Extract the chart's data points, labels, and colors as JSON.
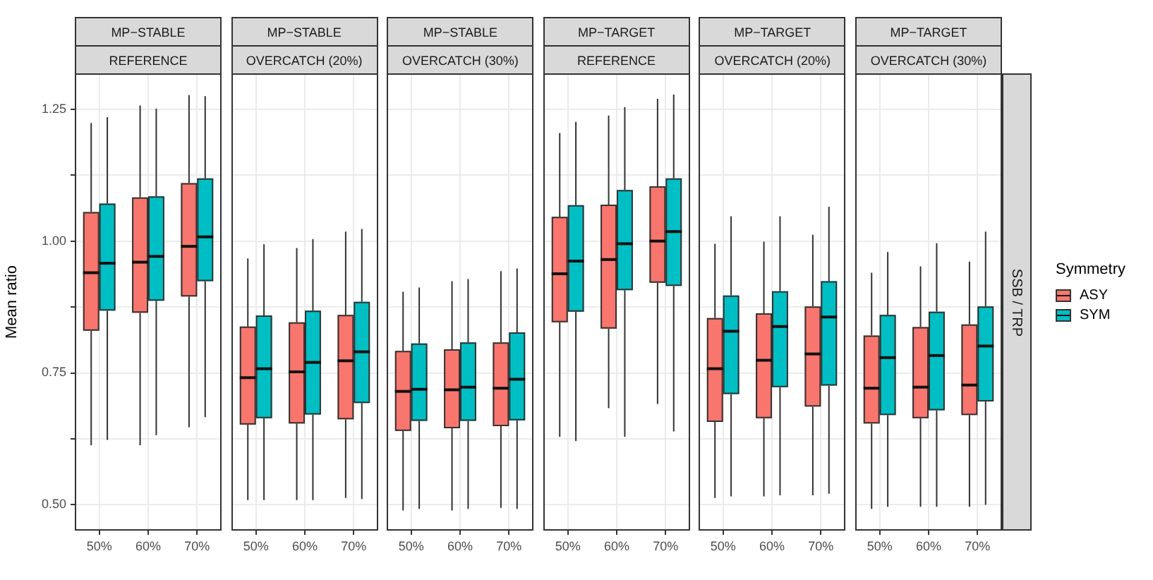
{
  "chart_data": [
    {
      "type": "box",
      "title": "MP−STABLE",
      "subtitle": "REFERENCE",
      "ylabel": "Mean ratio",
      "categories": [
        "50%",
        "60%",
        "70%"
      ],
      "ylim": [
        0.451,
        1.318
      ],
      "yticks": [
        {
          "value": 0.5,
          "label": "0.50"
        },
        {
          "value": 0.625,
          "label": null
        },
        0.75,
        {
          "value": 0.875,
          "label": null
        },
        {
          "value": 1,
          "label": "1.00"
        },
        {
          "value": 1.125,
          "label": null
        },
        1.25
      ],
      "grid": true,
      "series": [
        {
          "color": "#f8766d",
          "boxes": [
            {
              "low": 0.613,
              "q1": 0.83,
              "median": 0.94,
              "q3": 1.055,
              "high": 1.224
            },
            {
              "low": 0.613,
              "q1": 0.864,
              "median": 0.96,
              "q3": 1.083,
              "high": 1.257
            },
            {
              "low": 0.647,
              "q1": 0.895,
              "median": 0.99,
              "q3": 1.11,
              "high": 1.277
            }
          ]
        },
        {
          "color": "#00bfc4",
          "boxes": [
            {
              "low": 0.623,
              "q1": 0.868,
              "median": 0.958,
              "q3": 1.071,
              "high": 1.235
            },
            {
              "low": 0.632,
              "q1": 0.887,
              "median": 0.971,
              "q3": 1.085,
              "high": 1.251
            },
            {
              "low": 0.666,
              "q1": 0.924,
              "median": 1.008,
              "q3": 1.119,
              "high": 1.275
            }
          ]
        }
      ]
    },
    {
      "type": "box",
      "title": "MP−STABLE",
      "subtitle": "OVERCATCH (20%)",
      "categories": [
        "50%",
        "60%",
        "70%"
      ],
      "ylim": [
        0.451,
        1.318
      ],
      "yticks": [
        {
          "value": 0.5,
          "label": null
        },
        {
          "value": 0.625,
          "label": null
        },
        {
          "value": 0.75,
          "label": null
        },
        {
          "value": 0.875,
          "label": null
        },
        {
          "value": 1,
          "label": null
        },
        {
          "value": 1.125,
          "label": null
        },
        {
          "value": 1.25,
          "label": null
        }
      ],
      "grid": true,
      "tick_labels": "x",
      "series": [
        {
          "color": "#f8766d",
          "boxes": [
            {
              "low": 0.509,
              "q1": 0.652,
              "median": 0.741,
              "q3": 0.838,
              "high": 0.967
            },
            {
              "low": 0.509,
              "q1": 0.654,
              "median": 0.752,
              "q3": 0.846,
              "high": 0.987
            },
            {
              "low": 0.513,
              "q1": 0.662,
              "median": 0.773,
              "q3": 0.86,
              "high": 1.018
            }
          ]
        },
        {
          "color": "#00bfc4",
          "boxes": [
            {
              "low": 0.509,
              "q1": 0.664,
              "median": 0.758,
              "q3": 0.859,
              "high": 0.994
            },
            {
              "low": 0.509,
              "q1": 0.671,
              "median": 0.77,
              "q3": 0.868,
              "high": 1.004
            },
            {
              "low": 0.511,
              "q1": 0.693,
              "median": 0.79,
              "q3": 0.885,
              "high": 1.023
            }
          ]
        }
      ]
    },
    {
      "type": "box",
      "title": "MP−STABLE",
      "subtitle": "OVERCATCH (30%)",
      "categories": [
        "50%",
        "60%",
        "70%"
      ],
      "ylim": [
        0.451,
        1.318
      ],
      "yticks": [
        {
          "value": 0.5,
          "label": null
        },
        {
          "value": 0.625,
          "label": null
        },
        {
          "value": 0.75,
          "label": null
        },
        {
          "value": 0.875,
          "label": null
        },
        {
          "value": 1,
          "label": null
        },
        {
          "value": 1.125,
          "label": null
        },
        {
          "value": 1.25,
          "label": null
        }
      ],
      "grid": true,
      "tick_labels": "x",
      "series": [
        {
          "color": "#f8766d",
          "boxes": [
            {
              "low": 0.489,
              "q1": 0.64,
              "median": 0.715,
              "q3": 0.792,
              "high": 0.904
            },
            {
              "low": 0.489,
              "q1": 0.645,
              "median": 0.718,
              "q3": 0.795,
              "high": 0.924
            },
            {
              "low": 0.494,
              "q1": 0.649,
              "median": 0.721,
              "q3": 0.808,
              "high": 0.943
            }
          ]
        },
        {
          "color": "#00bfc4",
          "boxes": [
            {
              "low": 0.492,
              "q1": 0.659,
              "median": 0.719,
              "q3": 0.806,
              "high": 0.912
            },
            {
              "low": 0.492,
              "q1": 0.659,
              "median": 0.723,
              "q3": 0.808,
              "high": 0.928
            },
            {
              "low": 0.492,
              "q1": 0.66,
              "median": 0.738,
              "q3": 0.827,
              "high": 0.948
            }
          ]
        }
      ]
    },
    {
      "type": "box",
      "title": "MP−TARGET",
      "subtitle": "REFERENCE",
      "categories": [
        "50%",
        "60%",
        "70%"
      ],
      "ylim": [
        0.451,
        1.318
      ],
      "yticks": [
        {
          "value": 0.5,
          "label": null
        },
        {
          "value": 0.625,
          "label": null
        },
        {
          "value": 0.75,
          "label": null
        },
        {
          "value": 0.875,
          "label": null
        },
        {
          "value": 1,
          "label": null
        },
        {
          "value": 1.125,
          "label": null
        },
        {
          "value": 1.25,
          "label": null
        }
      ],
      "grid": true,
      "tick_labels": "x",
      "series": [
        {
          "color": "#f8766d",
          "boxes": [
            {
              "low": 0.629,
              "q1": 0.846,
              "median": 0.938,
              "q3": 1.046,
              "high": 1.205
            },
            {
              "low": 0.683,
              "q1": 0.834,
              "median": 0.965,
              "q3": 1.069,
              "high": 1.238
            },
            {
              "low": 0.691,
              "q1": 0.921,
              "median": 1.0,
              "q3": 1.104,
              "high": 1.27
            }
          ]
        },
        {
          "color": "#00bfc4",
          "boxes": [
            {
              "low": 0.621,
              "q1": 0.866,
              "median": 0.962,
              "q3": 1.068,
              "high": 1.226
            },
            {
              "low": 0.629,
              "q1": 0.907,
              "median": 0.995,
              "q3": 1.097,
              "high": 1.254
            },
            {
              "low": 0.639,
              "q1": 0.915,
              "median": 1.018,
              "q3": 1.119,
              "high": 1.278
            }
          ]
        }
      ]
    },
    {
      "type": "box",
      "title": "MP−TARGET",
      "subtitle": "OVERCATCH (20%)",
      "categories": [
        "50%",
        "60%",
        "70%"
      ],
      "ylim": [
        0.451,
        1.318
      ],
      "yticks": [
        {
          "value": 0.5,
          "label": null
        },
        {
          "value": 0.625,
          "label": null
        },
        {
          "value": 0.75,
          "label": null
        },
        {
          "value": 0.875,
          "label": null
        },
        {
          "value": 1,
          "label": null
        },
        {
          "value": 1.125,
          "label": null
        },
        {
          "value": 1.25,
          "label": null
        }
      ],
      "grid": true,
      "tick_labels": "x",
      "series": [
        {
          "color": "#f8766d",
          "boxes": [
            {
              "low": 0.513,
              "q1": 0.657,
              "median": 0.758,
              "q3": 0.854,
              "high": 0.995
            },
            {
              "low": 0.516,
              "q1": 0.664,
              "median": 0.774,
              "q3": 0.863,
              "high": 0.999
            },
            {
              "low": 0.518,
              "q1": 0.686,
              "median": 0.786,
              "q3": 0.876,
              "high": 1.012
            }
          ]
        },
        {
          "color": "#00bfc4",
          "boxes": [
            {
              "low": 0.516,
              "q1": 0.71,
              "median": 0.829,
              "q3": 0.897,
              "high": 1.047
            },
            {
              "low": 0.518,
              "q1": 0.723,
              "median": 0.838,
              "q3": 0.905,
              "high": 1.047
            },
            {
              "low": 0.521,
              "q1": 0.726,
              "median": 0.856,
              "q3": 0.924,
              "high": 1.065
            }
          ]
        }
      ]
    },
    {
      "type": "box",
      "title": "MP−TARGET",
      "subtitle": "OVERCATCH (30%)",
      "categories": [
        "50%",
        "60%",
        "70%"
      ],
      "ylim": [
        0.451,
        1.318
      ],
      "yticks": [
        {
          "value": 0.5,
          "label": null
        },
        {
          "value": 0.625,
          "label": null
        },
        {
          "value": 0.75,
          "label": null
        },
        {
          "value": 0.875,
          "label": null
        },
        {
          "value": 1,
          "label": null
        },
        {
          "value": 1.125,
          "label": null
        },
        {
          "value": 1.25,
          "label": null
        }
      ],
      "grid": true,
      "tick_labels": "x",
      "legend": "right",
      "legend_title": "Symmetry",
      "annotations": [
        "SSB / TRP"
      ],
      "series": [
        {
          "name": "ASY",
          "color": "#f8766d",
          "boxes": [
            {
              "low": 0.492,
              "q1": 0.654,
              "median": 0.721,
              "q3": 0.821,
              "high": 0.94
            },
            {
              "low": 0.496,
              "q1": 0.664,
              "median": 0.723,
              "q3": 0.837,
              "high": 0.952
            },
            {
              "low": 0.496,
              "q1": 0.67,
              "median": 0.727,
              "q3": 0.842,
              "high": 0.961
            }
          ]
        },
        {
          "name": "SYM",
          "color": "#00bfc4",
          "boxes": [
            {
              "low": 0.496,
              "q1": 0.67,
              "median": 0.779,
              "q3": 0.86,
              "high": 0.979
            },
            {
              "low": 0.496,
              "q1": 0.679,
              "median": 0.783,
              "q3": 0.866,
              "high": 0.996
            },
            {
              "low": 0.5,
              "q1": 0.696,
              "median": 0.801,
              "q3": 0.876,
              "high": 1.018
            }
          ]
        }
      ]
    }
  ]
}
